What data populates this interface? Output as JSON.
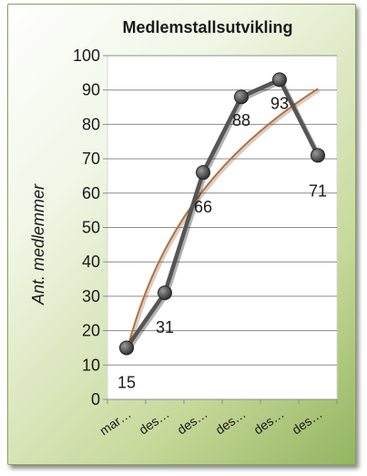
{
  "chart_data": {
    "type": "line",
    "title": "Medlemstallsutvikling",
    "xlabel": "",
    "ylabel": "Ant. medlemmer",
    "categories": [
      "mar…",
      "des…",
      "des…",
      "des…",
      "des…",
      "des…"
    ],
    "series": [
      {
        "values": [
          15,
          31,
          66,
          88,
          93,
          71
        ],
        "color": "#555555"
      }
    ],
    "data_labels": [
      "15",
      "31",
      "66",
      "88",
      "93",
      "71"
    ],
    "trendline": {
      "type": "logarithmic",
      "color": "#b5713c"
    },
    "ylim": [
      0,
      100
    ],
    "yticks": [
      0,
      10,
      20,
      30,
      40,
      50,
      60,
      70,
      80,
      90,
      100
    ],
    "grid": true,
    "legend": "none"
  }
}
